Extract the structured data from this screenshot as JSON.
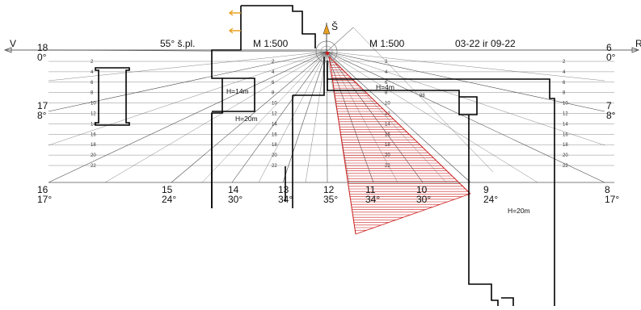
{
  "header": {
    "west_letter": "V",
    "east_letter": "R",
    "latitude": "55° š.pl.",
    "scale_left": "M 1:500",
    "scale_right": "M 1:500",
    "dates": "03-22 ir 09-22",
    "north_label": "Š"
  },
  "sun_marks": [
    {
      "hour": "18",
      "angle": "0°"
    },
    {
      "hour": "17",
      "angle": "8°"
    },
    {
      "hour": "16",
      "angle": "17°"
    },
    {
      "hour": "15",
      "angle": "24°"
    },
    {
      "hour": "14",
      "angle": "30°"
    },
    {
      "hour": "13",
      "angle": "34°"
    },
    {
      "hour": "12",
      "angle": "35°"
    },
    {
      "hour": "11",
      "angle": "34°"
    },
    {
      "hour": "10",
      "angle": "30°"
    },
    {
      "hour": "9",
      "angle": "24°"
    },
    {
      "hour": "8",
      "angle": "17°"
    },
    {
      "hour": "7",
      "angle": "8°"
    },
    {
      "hour": "6",
      "angle": "0°"
    }
  ],
  "grid_levels": [
    "2",
    "4",
    "6",
    "8",
    "10",
    "12",
    "14",
    "16",
    "18",
    "20",
    "22"
  ],
  "buildings": {
    "b1_height": "H=14m",
    "b2_height": "H=20m",
    "b3_height": "H=4m",
    "b4_height": "H=20m",
    "b3_note": "98"
  },
  "colors": {
    "line": "#000000",
    "grid": "#6a6a6a",
    "shadow": "#cc1f1f",
    "marker": "#e8a020"
  }
}
